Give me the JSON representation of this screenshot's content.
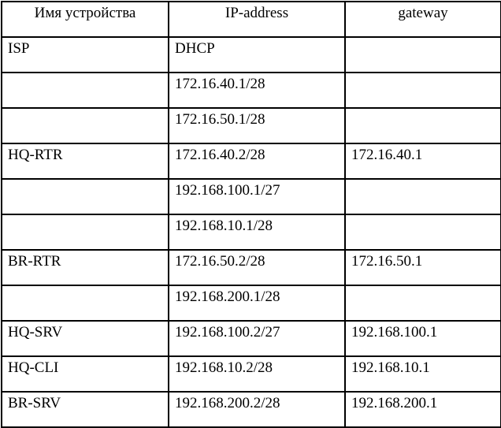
{
  "table": {
    "headers": [
      "Имя устройства",
      "IP-address",
      "gateway"
    ],
    "rows": [
      {
        "device": "ISP",
        "ip": "DHCP",
        "gateway": ""
      },
      {
        "device": "",
        "ip": "172.16.40.1/28",
        "gateway": ""
      },
      {
        "device": "",
        "ip": "172.16.50.1/28",
        "gateway": ""
      },
      {
        "device": "HQ-RTR",
        "ip": "172.16.40.2/28",
        "gateway": "172.16.40.1"
      },
      {
        "device": "",
        "ip": "192.168.100.1/27",
        "gateway": ""
      },
      {
        "device": "",
        "ip": "192.168.10.1/28",
        "gateway": ""
      },
      {
        "device": "BR-RTR",
        "ip": "172.16.50.2/28",
        "gateway": "172.16.50.1"
      },
      {
        "device": "",
        "ip": "192.168.200.1/28",
        "gateway": ""
      },
      {
        "device": "HQ-SRV",
        "ip": "192.168.100.2/27",
        "gateway": "192.168.100.1"
      },
      {
        "device": "HQ-CLI",
        "ip": "192.168.10.2/28",
        "gateway": "192.168.10.1"
      },
      {
        "device": "BR-SRV",
        "ip": "192.168.200.2/28",
        "gateway": "192.168.200.1"
      }
    ],
    "colors": {
      "border": "#000000",
      "background": "#ffffff",
      "text": "#000000"
    }
  }
}
